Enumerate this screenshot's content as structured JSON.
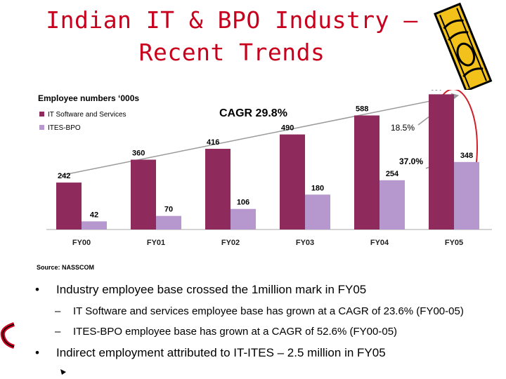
{
  "title": {
    "line1": "Indian IT & BPO Industry –",
    "line2": "Recent Trends"
  },
  "chart_data": {
    "type": "bar",
    "title": "Employee numbers ‘000s",
    "categories": [
      "FY00",
      "FY01",
      "FY02",
      "FY03",
      "FY04",
      "FY05"
    ],
    "series": [
      {
        "name": "IT Software and Services",
        "values": [
          242,
          360,
          416,
          490,
          588,
          697
        ],
        "color": "#8e2a5c"
      },
      {
        "name": "ITES-BPO",
        "values": [
          42,
          70,
          106,
          180,
          254,
          348
        ],
        "color": "#b697ce"
      }
    ],
    "ylim": [
      0,
      720
    ],
    "annotations": {
      "cagr": "CAGR 29.8%",
      "growth_it": "18.5%",
      "growth_bpo": "37.0%"
    },
    "legend": "top-left",
    "grid": false
  },
  "source": "Source: NASSCOM",
  "bullets": [
    {
      "marker": "•",
      "text": "Industry employee base crossed the 1million mark in FY05"
    },
    {
      "marker": "–",
      "text": "IT Software and services employee base has grown at a CAGR of 23.6% (FY00-05)"
    },
    {
      "marker": "–",
      "text": "ITES-BPO employee base has grown at a CAGR of 52.6% (FY00-05)"
    },
    {
      "marker": "•",
      "text": "Indirect employment attributed to IT-ITES – 2.5 million in FY05"
    }
  ]
}
